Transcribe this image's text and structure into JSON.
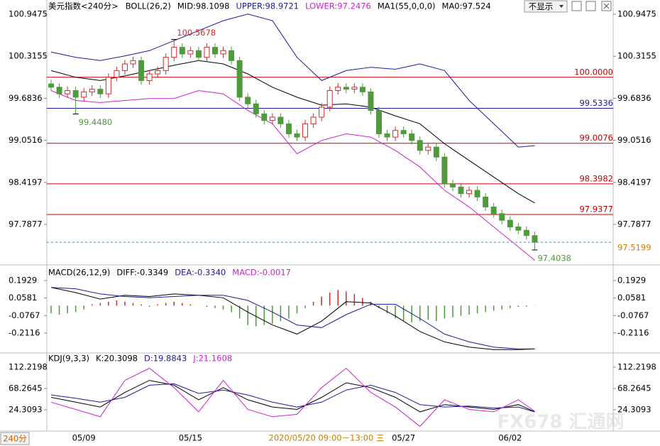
{
  "ui": {
    "hide_button": "不显示",
    "period": "240分",
    "cursor_label": "2020/05/20 09:00－13:00 三",
    "watermark": "FX678 汇通网"
  },
  "chart_data": [
    {
      "type": "candlestick",
      "title": "美元指数<240分>",
      "legend": [
        {
          "text": "BOLL(26,2)",
          "color": "#000000"
        },
        {
          "text": "MID:98.1098",
          "color": "#000000"
        },
        {
          "text": "UPPER:98.9721",
          "color": "#1c1c9c"
        },
        {
          "text": "LOWER:97.2476",
          "color": "#d020d0"
        },
        {
          "text": "MA1(55,0,0,0)",
          "color": "#000000"
        },
        {
          "text": "MA0:97.524",
          "color": "#000000"
        }
      ],
      "categories": [
        null,
        null,
        null,
        null,
        "05/09",
        null,
        null,
        null,
        null,
        null,
        null,
        null,
        null,
        null,
        null,
        null,
        null,
        "05/15",
        null,
        null,
        null,
        null,
        null,
        null,
        null,
        null,
        null,
        null,
        null,
        null,
        null,
        null,
        null,
        null,
        null,
        null,
        null,
        null,
        null,
        null,
        null,
        null,
        null,
        "05/27",
        null,
        null,
        null,
        null,
        null,
        null,
        null,
        null,
        null,
        null,
        null,
        null,
        "06/02",
        null,
        null,
        null
      ],
      "open": [
        99.9,
        99.85,
        99.75,
        99.8,
        99.7,
        99.78,
        99.82,
        99.75,
        100.0,
        100.1,
        100.2,
        100.25,
        99.95,
        100.05,
        100.1,
        100.3,
        100.45,
        100.35,
        100.4,
        100.3,
        100.45,
        100.35,
        100.4,
        100.25,
        99.7,
        99.6,
        99.45,
        99.35,
        99.4,
        99.3,
        99.15,
        99.1,
        99.3,
        99.4,
        99.55,
        99.8,
        99.85,
        99.82,
        99.85,
        99.78,
        99.5,
        99.15,
        99.1,
        99.2,
        99.15,
        99.05,
        98.9,
        98.95,
        98.8,
        98.4,
        98.35,
        98.25,
        98.3,
        98.2,
        98.05,
        97.95,
        97.85,
        97.75,
        97.7,
        97.62
      ],
      "high": [
        99.96,
        99.91,
        99.86,
        99.86,
        99.84,
        99.88,
        99.88,
        100.06,
        100.16,
        100.26,
        100.31,
        100.31,
        100.11,
        100.16,
        100.36,
        100.5678,
        100.51,
        100.46,
        100.46,
        100.51,
        100.51,
        100.46,
        100.46,
        100.31,
        99.76,
        99.66,
        99.51,
        99.46,
        99.46,
        99.36,
        99.21,
        99.36,
        99.46,
        99.61,
        99.86,
        99.91,
        99.91,
        99.91,
        99.91,
        99.84,
        99.56,
        99.21,
        99.26,
        99.26,
        99.21,
        99.11,
        99.01,
        99.01,
        98.86,
        98.46,
        98.41,
        98.36,
        98.36,
        98.26,
        98.11,
        98.01,
        97.91,
        97.81,
        97.76,
        97.68
      ],
      "low": [
        99.79,
        99.69,
        99.69,
        99.448,
        99.64,
        99.72,
        99.69,
        99.69,
        99.94,
        100.04,
        100.14,
        99.89,
        99.89,
        99.99,
        100.04,
        100.24,
        100.29,
        100.29,
        100.24,
        100.24,
        100.29,
        100.29,
        100.19,
        99.64,
        99.54,
        99.39,
        99.29,
        99.29,
        99.24,
        99.09,
        99.04,
        99.04,
        99.24,
        99.34,
        99.49,
        99.74,
        99.76,
        99.76,
        99.72,
        99.44,
        99.09,
        99.04,
        99.04,
        99.09,
        98.99,
        98.84,
        98.84,
        98.74,
        98.34,
        98.29,
        98.19,
        98.19,
        98.14,
        97.99,
        97.89,
        97.79,
        97.69,
        97.64,
        97.56,
        97.4038
      ],
      "close": [
        99.85,
        99.75,
        99.8,
        99.7,
        99.78,
        99.82,
        99.75,
        100.0,
        100.1,
        100.2,
        100.25,
        99.95,
        100.05,
        100.1,
        100.3,
        100.45,
        100.35,
        100.4,
        100.3,
        100.45,
        100.35,
        100.4,
        100.25,
        99.7,
        99.6,
        99.45,
        99.35,
        99.4,
        99.3,
        99.15,
        99.1,
        99.3,
        99.4,
        99.55,
        99.8,
        99.85,
        99.82,
        99.85,
        99.78,
        99.5,
        99.15,
        99.1,
        99.2,
        99.15,
        99.05,
        98.9,
        98.95,
        98.8,
        98.4,
        98.35,
        98.25,
        98.3,
        98.2,
        98.05,
        97.95,
        97.85,
        97.75,
        97.7,
        97.62,
        97.52
      ],
      "up_color": "#d42a2a",
      "down_color": "#4f9a3c",
      "series": [
        {
          "color": "#1c1c9c",
          "x": [
            0,
            3,
            6,
            9,
            12,
            15,
            18,
            21,
            24,
            27,
            30,
            33,
            36,
            39,
            42,
            45,
            48,
            51,
            54,
            57,
            59
          ],
          "values": [
            100.38,
            100.3,
            100.25,
            100.32,
            100.4,
            100.55,
            100.7,
            100.85,
            100.95,
            100.85,
            100.3,
            99.95,
            100.1,
            100.15,
            100.12,
            100.2,
            100.1,
            99.65,
            99.3,
            98.95,
            98.9721
          ]
        },
        {
          "color": "#000000",
          "x": [
            0,
            3,
            6,
            9,
            12,
            15,
            18,
            21,
            24,
            27,
            30,
            33,
            36,
            39,
            42,
            45,
            48,
            51,
            54,
            57,
            59
          ],
          "values": [
            100.1,
            100.0,
            99.95,
            100.02,
            100.1,
            100.18,
            100.25,
            100.2,
            100.05,
            99.85,
            99.7,
            99.58,
            99.6,
            99.55,
            99.42,
            99.3,
            99.0,
            98.75,
            98.5,
            98.25,
            98.1098
          ]
        },
        {
          "color": "#d020d0",
          "x": [
            0,
            3,
            6,
            9,
            12,
            15,
            18,
            21,
            24,
            27,
            30,
            33,
            36,
            39,
            42,
            45,
            48,
            51,
            54,
            57,
            59
          ],
          "values": [
            99.8,
            99.65,
            99.62,
            99.65,
            99.68,
            99.68,
            99.8,
            99.75,
            99.5,
            99.3,
            98.85,
            99.05,
            99.15,
            99.1,
            98.9,
            98.65,
            98.3,
            98.05,
            97.75,
            97.45,
            97.2476
          ]
        }
      ],
      "ylim": [
        97.2113,
        101.1076
      ],
      "yticks": [
        100.9475,
        100.3155,
        99.6836,
        99.0516,
        98.4197,
        97.7877
      ],
      "hlines": [
        {
          "value": 100,
          "label": "100.0000",
          "color": "#c00000"
        },
        {
          "value": 99.5336,
          "color": "#1c1c9c"
        },
        {
          "value": 99.0076,
          "color": "#c00000"
        },
        {
          "value": 98.3982,
          "color": "#c00000"
        },
        {
          "value": 97.9377,
          "color": "#c00000"
        }
      ],
      "last_price": 97.5199,
      "annotations": [
        {
          "x": 15,
          "value": 100.5678,
          "color": "#d42a2a"
        },
        {
          "x": 3,
          "value": 99.448,
          "label": "99.4480",
          "color": "#4f9a3c"
        },
        {
          "x": 59,
          "value": 97.4038,
          "color": "#4f9a3c"
        }
      ]
    },
    {
      "type": "macd",
      "legend": [
        {
          "text": "MACD(26,12,9)",
          "color": "#000000"
        },
        {
          "text": "DIFF:-0.3349",
          "color": "#000000"
        },
        {
          "text": "DEA:-0.3340",
          "color": "#1c1c9c"
        },
        {
          "text": "MACD:-0.0017",
          "color": "#d020d0"
        }
      ],
      "values": [
        -0.06,
        -0.07,
        -0.06,
        -0.05,
        -0.03,
        0.01,
        0.02,
        0.03,
        0.04,
        0.03,
        0.02,
        0.01,
        -0.01,
        0.01,
        0.02,
        0.03,
        0.02,
        0.01,
        0.0,
        -0.01,
        -0.02,
        -0.03,
        -0.05,
        -0.1,
        -0.15,
        -0.16,
        -0.15,
        -0.14,
        -0.12,
        -0.1,
        -0.06,
        -0.02,
        0.03,
        0.07,
        0.1,
        0.12,
        0.11,
        0.09,
        0.06,
        0.03,
        -0.02,
        -0.06,
        -0.1,
        -0.12,
        -0.13,
        -0.12,
        -0.11,
        -0.12,
        -0.1,
        -0.09,
        -0.08,
        -0.07,
        -0.06,
        -0.05,
        -0.04,
        -0.03,
        -0.02,
        -0.01,
        -0.01,
        -0.0017
      ],
      "up_color": "#d42a2a",
      "down_color": "#4f9a3c",
      "series": [
        {
          "color": "#000000",
          "x": [
            0,
            3,
            6,
            9,
            12,
            15,
            18,
            21,
            24,
            27,
            30,
            33,
            36,
            39,
            42,
            45,
            48,
            51,
            54,
            57,
            59
          ],
          "values": [
            0.14,
            0.1,
            0.05,
            0.08,
            0.07,
            0.09,
            0.08,
            0.06,
            -0.05,
            -0.15,
            -0.22,
            -0.12,
            0.03,
            0.02,
            -0.08,
            -0.2,
            -0.28,
            -0.32,
            -0.34,
            -0.34,
            -0.3349
          ]
        },
        {
          "color": "#1c1c9c",
          "x": [
            0,
            3,
            6,
            9,
            12,
            15,
            18,
            21,
            24,
            27,
            30,
            33,
            36,
            39,
            42,
            45,
            48,
            51,
            54,
            57,
            59
          ],
          "values": [
            0.14,
            0.13,
            0.09,
            0.07,
            0.06,
            0.07,
            0.08,
            0.08,
            0.04,
            -0.05,
            -0.15,
            -0.17,
            -0.07,
            0.01,
            0.01,
            -0.1,
            -0.22,
            -0.28,
            -0.32,
            -0.335,
            -0.334
          ]
        }
      ],
      "ylim": [
        -0.3547,
        0.2755
      ],
      "yticks": [
        0.1929,
        0.0581,
        -0.0767,
        -0.2116
      ]
    },
    {
      "type": "kdj",
      "legend": [
        {
          "text": "KDJ(9,3,3)",
          "color": "#000000"
        },
        {
          "text": "K:20.3098",
          "color": "#000000"
        },
        {
          "text": "D:19.8843",
          "color": "#1c1c9c"
        },
        {
          "text": "J:21.1608",
          "color": "#d020d0"
        }
      ],
      "series": [
        {
          "color": "#000000",
          "x": [
            0,
            3,
            6,
            9,
            12,
            15,
            18,
            21,
            24,
            27,
            30,
            33,
            36,
            39,
            42,
            45,
            48,
            51,
            54,
            57,
            59
          ],
          "values": [
            50,
            40,
            30,
            60,
            85,
            75,
            45,
            70,
            45,
            30,
            25,
            50,
            80,
            70,
            50,
            20,
            35,
            30,
            25,
            35,
            20.3098
          ]
        },
        {
          "color": "#1c1c9c",
          "x": [
            0,
            3,
            6,
            9,
            12,
            15,
            18,
            21,
            24,
            27,
            30,
            33,
            36,
            39,
            42,
            45,
            48,
            51,
            54,
            57,
            59
          ],
          "values": [
            55,
            48,
            40,
            50,
            75,
            78,
            58,
            65,
            55,
            40,
            30,
            40,
            65,
            75,
            60,
            35,
            30,
            32,
            28,
            30,
            19.8843
          ]
        },
        {
          "color": "#d020d0",
          "x": [
            0,
            3,
            6,
            9,
            12,
            15,
            18,
            21,
            24,
            27,
            30,
            33,
            36,
            39,
            42,
            45,
            48,
            51,
            54,
            57,
            59
          ],
          "values": [
            40,
            25,
            10,
            85,
            110,
            70,
            20,
            85,
            25,
            10,
            15,
            70,
            110,
            60,
            30,
            -10,
            45,
            25,
            20,
            45,
            21.1608
          ]
        }
      ],
      "ylim": [
        -16.72,
        137.13
      ],
      "yticks": [
        112.2198,
        68.2645,
        24.3093
      ]
    }
  ]
}
